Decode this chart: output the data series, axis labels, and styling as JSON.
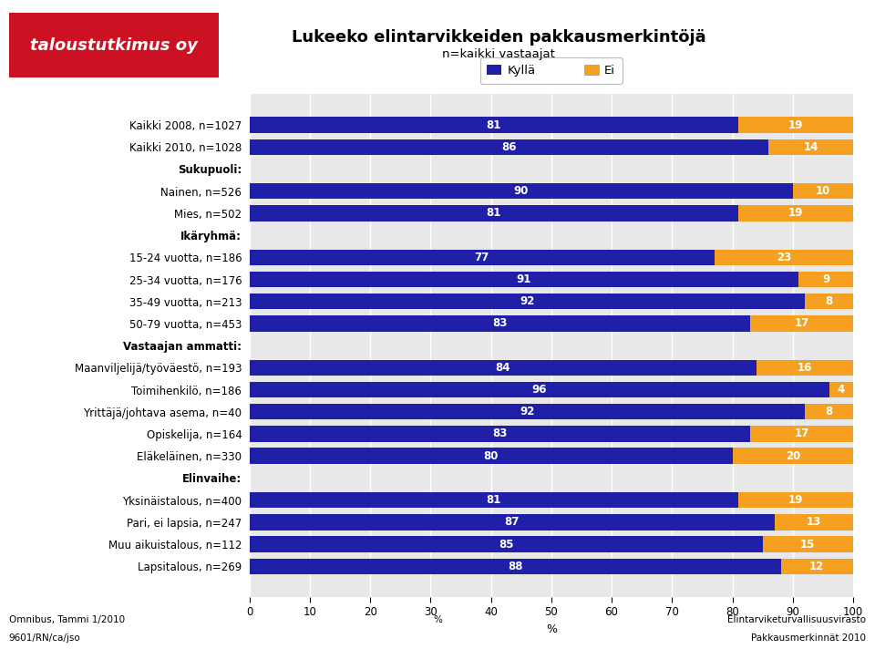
{
  "title": "Lukeeko elintarvikkeiden pakkausmerkintöjä",
  "subtitle": "n=kaikki vastaajat",
  "categories": [
    "Kaikki 2008, n=1027",
    "Kaikki 2010, n=1028",
    "Sukupuoli:",
    "Nainen, n=526",
    "Mies, n=502",
    "Ikäryhmä:",
    "15-24 vuotta, n=186",
    "25-34 vuotta, n=176",
    "35-49 vuotta, n=213",
    "50-79 vuotta, n=453",
    "Vastaajan ammatti:",
    "Maanviljelijä/työväestö, n=193",
    "Toimihenkilö, n=186",
    "Yrittäjä/johtava asema, n=40",
    "Opiskelija, n=164",
    "Eläkeläinen, n=330",
    "Elinvaihe:",
    "Yksinäistalous, n=400",
    "Pari, ei lapsia, n=247",
    "Muu aikuistalous, n=112",
    "Lapsitalous, n=269"
  ],
  "kylla": [
    81,
    86,
    null,
    90,
    81,
    null,
    77,
    91,
    92,
    83,
    null,
    84,
    96,
    92,
    83,
    80,
    null,
    81,
    87,
    85,
    88
  ],
  "ei": [
    19,
    14,
    null,
    10,
    19,
    null,
    23,
    9,
    8,
    17,
    null,
    16,
    4,
    8,
    17,
    20,
    null,
    19,
    13,
    15,
    12
  ],
  "header_indices": [
    2,
    5,
    10,
    16
  ],
  "kylla_color": "#1f1fa8",
  "ei_color": "#f5a020",
  "bar_height": 0.72,
  "xlim": [
    0,
    100
  ],
  "xticks": [
    0,
    10,
    20,
    30,
    40,
    50,
    60,
    70,
    80,
    90,
    100
  ],
  "legend_kylla": "Kyllä",
  "legend_ei": "Ei",
  "footer_left1": "Omnibus, Tammi 1/2010",
  "footer_left2": "9601/RN/ca/jso",
  "footer_right1": "Elintarviketurvallisuusvirasto",
  "footer_right2": "Pakkausmerkinnät 2010",
  "footer_center": "%",
  "logo_text": "taloustutkimus oy",
  "logo_bg": "#cc1122",
  "logo_fg": "#ffffff",
  "bg_color": "#ffffff",
  "bar_bg_color": "#e8e8e8"
}
